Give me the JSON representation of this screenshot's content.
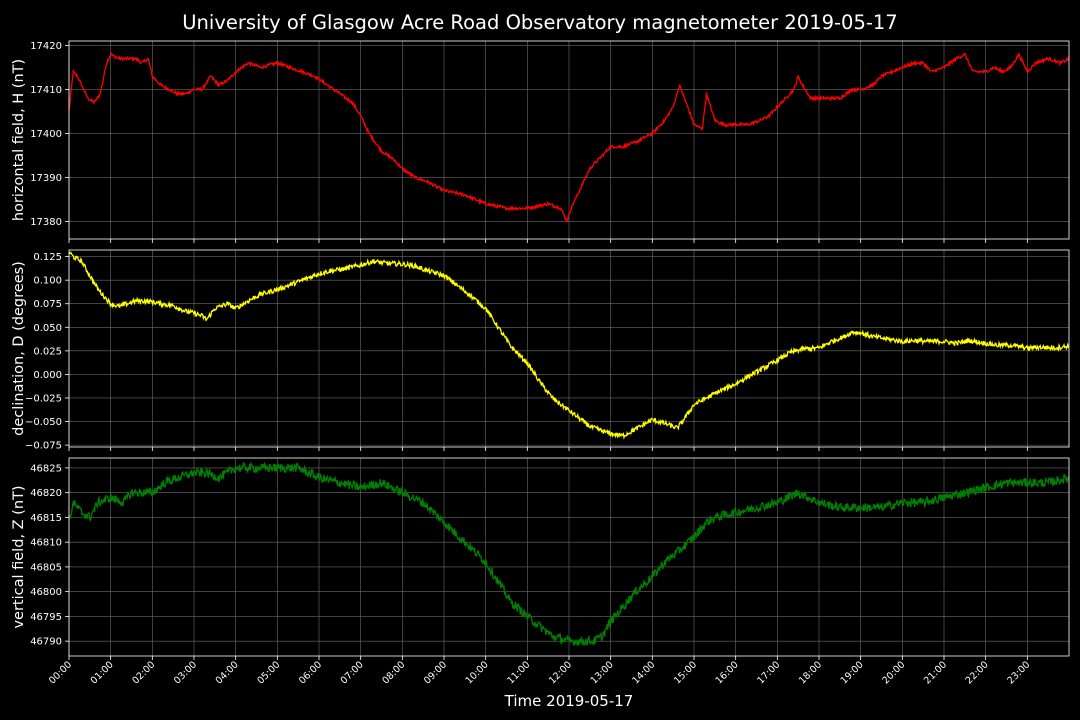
{
  "chart_data": {
    "type": "line",
    "title": "University of Glasgow Acre Road Observatory magnetometer 2019-05-17",
    "xlabel": "Time 2019-05-17",
    "x_ticks": [
      "00:00",
      "01:00",
      "02:00",
      "03:00",
      "04:00",
      "05:00",
      "06:00",
      "07:00",
      "08:00",
      "09:00",
      "10:00",
      "11:00",
      "12:00",
      "13:00",
      "14:00",
      "15:00",
      "16:00",
      "17:00",
      "18:00",
      "19:00",
      "20:00",
      "21:00",
      "22:00",
      "23:00"
    ],
    "xlim": [
      0,
      24
    ],
    "grid": true,
    "panels": [
      {
        "ylabel": "horizontal field, H (nT)",
        "color": "#ff0000",
        "ylim": [
          17376,
          17421
        ],
        "yticks": [
          17380,
          17390,
          17400,
          17410,
          17420
        ],
        "ytick_labels": [
          "17380",
          "17390",
          "17400",
          "17410",
          "17420"
        ],
        "noise": 0.35,
        "x": [
          0,
          0.1,
          0.2,
          0.35,
          0.45,
          0.6,
          0.75,
          0.9,
          1.0,
          1.2,
          1.3,
          1.45,
          1.6,
          1.75,
          1.9,
          2.0,
          2.2,
          2.4,
          2.6,
          2.8,
          3.0,
          3.2,
          3.4,
          3.6,
          3.8,
          4.0,
          4.3,
          4.6,
          5.0,
          5.3,
          5.6,
          5.9,
          6.2,
          6.5,
          6.8,
          7.0,
          7.2,
          7.5,
          7.8,
          8.0,
          8.3,
          8.6,
          9.0,
          9.5,
          10.0,
          10.5,
          11.0,
          11.5,
          11.8,
          11.95,
          12.05,
          12.2,
          12.5,
          12.8,
          13.0,
          13.3,
          13.6,
          14.0,
          14.3,
          14.5,
          14.65,
          14.85,
          15.0,
          15.2,
          15.3,
          15.5,
          15.7,
          16.0,
          16.3,
          16.6,
          16.8,
          17.0,
          17.2,
          17.4,
          17.5,
          17.6,
          17.8,
          18.0,
          18.5,
          18.8,
          19.0,
          19.3,
          19.5,
          20.0,
          20.3,
          20.5,
          20.7,
          21.0,
          21.3,
          21.5,
          21.7,
          22.0,
          22.2,
          22.4,
          22.6,
          22.8,
          23.0,
          23.2,
          23.5,
          23.8,
          24.0
        ],
        "y": [
          17405,
          17414,
          17413,
          17410,
          17408,
          17407,
          17409,
          17416,
          17418,
          17417,
          17417,
          17417,
          17417,
          17416,
          17417,
          17413,
          17411,
          17410,
          17409,
          17409,
          17410,
          17410,
          17413,
          17411,
          17412,
          17414,
          17416,
          17415,
          17416,
          17415,
          17414,
          17413,
          17411,
          17409,
          17407,
          17404,
          17400,
          17396,
          17394,
          17392,
          17390,
          17389,
          17387,
          17386,
          17384,
          17383,
          17383,
          17384,
          17383,
          17380,
          17383,
          17386,
          17392,
          17395,
          17397,
          17397,
          17398,
          17400,
          17403,
          17406,
          17411,
          17406,
          17402,
          17401,
          17409,
          17403,
          17402,
          17402,
          17402,
          17403,
          17404,
          17406,
          17408,
          17410,
          17413,
          17411,
          17408,
          17408,
          17408,
          17410,
          17410,
          17411,
          17413,
          17415,
          17416,
          17416,
          17414,
          17415,
          17417,
          17418,
          17414,
          17414,
          17415,
          17414,
          17415,
          17418,
          17414,
          17416,
          17417,
          17416,
          17417
        ]
      },
      {
        "ylabel": "declination, D (degrees)",
        "color": "#ffff00",
        "ylim": [
          -0.077,
          0.132
        ],
        "yticks": [
          -0.075,
          -0.05,
          -0.025,
          0.0,
          0.025,
          0.05,
          0.075,
          0.1,
          0.125
        ],
        "ytick_labels": [
          "−0.075",
          "−0.050",
          "−0.025",
          "0.000",
          "0.025",
          "0.050",
          "0.075",
          "0.100",
          "0.125"
        ],
        "noise": 0.0025,
        "x": [
          0,
          0.1,
          0.3,
          0.5,
          0.7,
          1.0,
          1.2,
          1.4,
          1.6,
          1.8,
          2.0,
          2.2,
          2.5,
          2.8,
          3.0,
          3.2,
          3.3,
          3.5,
          3.8,
          4.0,
          4.3,
          4.6,
          5.0,
          5.3,
          5.6,
          6.0,
          6.3,
          6.6,
          7.0,
          7.3,
          7.6,
          8.0,
          8.3,
          8.6,
          9.0,
          9.3,
          9.6,
          10.0,
          10.3,
          10.6,
          11.0,
          11.3,
          11.6,
          11.9,
          12.2,
          12.5,
          12.8,
          13.0,
          13.3,
          13.6,
          14.0,
          14.3,
          14.6,
          14.8,
          15.0,
          15.3,
          15.6,
          16.0,
          16.3,
          16.6,
          17.0,
          17.3,
          17.6,
          18.0,
          18.3,
          18.6,
          18.8,
          19.0,
          19.3,
          19.6,
          20.0,
          20.3,
          20.6,
          21.0,
          21.3,
          21.6,
          22.0,
          22.3,
          22.6,
          23.0,
          23.3,
          23.6,
          24.0
        ],
        "y": [
          0.13,
          0.125,
          0.12,
          0.105,
          0.09,
          0.075,
          0.072,
          0.075,
          0.078,
          0.078,
          0.077,
          0.075,
          0.073,
          0.067,
          0.065,
          0.062,
          0.058,
          0.07,
          0.075,
          0.07,
          0.078,
          0.085,
          0.09,
          0.095,
          0.1,
          0.107,
          0.11,
          0.112,
          0.116,
          0.12,
          0.118,
          0.117,
          0.115,
          0.11,
          0.105,
          0.095,
          0.085,
          0.07,
          0.05,
          0.03,
          0.012,
          -0.008,
          -0.025,
          -0.035,
          -0.045,
          -0.055,
          -0.06,
          -0.063,
          -0.065,
          -0.058,
          -0.048,
          -0.052,
          -0.057,
          -0.045,
          -0.032,
          -0.025,
          -0.018,
          -0.01,
          -0.002,
          0.005,
          0.015,
          0.023,
          0.027,
          0.028,
          0.035,
          0.04,
          0.045,
          0.044,
          0.04,
          0.038,
          0.035,
          0.036,
          0.035,
          0.035,
          0.033,
          0.036,
          0.033,
          0.031,
          0.031,
          0.028,
          0.029,
          0.028,
          0.03
        ]
      },
      {
        "ylabel": "vertical field, Z (nT)",
        "color": "#008000",
        "ylim": [
          46787,
          46827
        ],
        "yticks": [
          46790,
          46795,
          46800,
          46805,
          46810,
          46815,
          46820,
          46825
        ],
        "ytick_labels": [
          "46790",
          "46795",
          "46800",
          "46805",
          "46810",
          "46815",
          "46820",
          "46825"
        ],
        "noise": 0.9,
        "x": [
          0,
          0.1,
          0.3,
          0.5,
          0.7,
          1.0,
          1.3,
          1.5,
          2.0,
          2.3,
          2.6,
          3.0,
          3.3,
          3.6,
          4.0,
          4.5,
          5.0,
          5.5,
          6.0,
          6.5,
          7.0,
          7.5,
          8.0,
          8.5,
          9.0,
          9.5,
          10.0,
          10.3,
          10.6,
          11.0,
          11.3,
          11.6,
          12.0,
          12.3,
          12.6,
          12.8,
          13.0,
          13.3,
          13.6,
          14.0,
          14.3,
          14.6,
          15.0,
          15.3,
          15.5,
          16.0,
          16.5,
          17.0,
          17.5,
          18.0,
          18.5,
          19.0,
          19.5,
          20.0,
          20.5,
          21.0,
          21.5,
          22.0,
          22.5,
          23.0,
          23.5,
          24.0
        ],
        "y": [
          46814,
          46818,
          46816,
          46815,
          46818,
          46819,
          46818,
          46820,
          46820,
          46822,
          46823,
          46824,
          46824,
          46823,
          46825,
          46825,
          46825,
          46825,
          46823,
          46822,
          46821,
          46822,
          46820,
          46818,
          46814,
          46810,
          46806,
          46802,
          46798,
          46795,
          46793,
          46791,
          46790,
          46790,
          46790,
          46791,
          46794,
          46797,
          46800,
          46803,
          46806,
          46808,
          46811,
          46814,
          46815,
          46816,
          46817,
          46818,
          46820,
          46818,
          46817,
          46817,
          46817,
          46818,
          46818,
          46819,
          46820,
          46821,
          46822,
          46822,
          46822,
          46823
        ]
      }
    ]
  }
}
